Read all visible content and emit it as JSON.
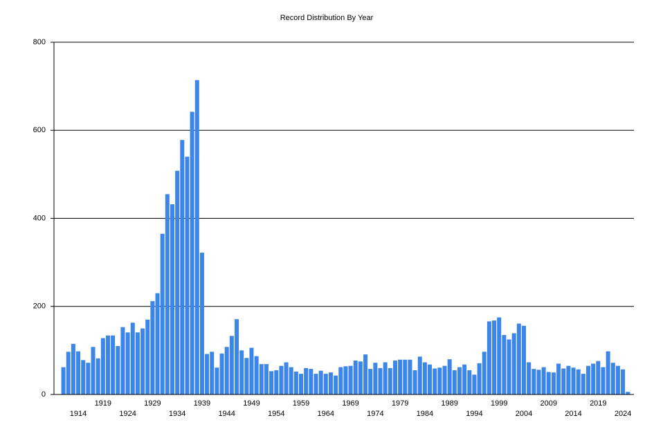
{
  "chart_data": {
    "type": "bar",
    "title": "Record Distribution By Year",
    "categories": [
      null,
      null,
      null,
      "1914",
      null,
      null,
      null,
      null,
      "1919",
      null,
      null,
      null,
      null,
      "1924",
      null,
      null,
      null,
      null,
      "1929",
      null,
      null,
      null,
      null,
      "1934",
      null,
      null,
      null,
      null,
      "1939",
      null,
      null,
      null,
      null,
      "1944",
      null,
      null,
      null,
      null,
      "1949",
      null,
      null,
      null,
      null,
      "1954",
      null,
      null,
      null,
      null,
      "1959",
      null,
      null,
      null,
      null,
      "1964",
      null,
      null,
      null,
      null,
      "1969",
      null,
      null,
      null,
      null,
      "1974",
      null,
      null,
      null,
      null,
      "1979",
      null,
      null,
      null,
      null,
      "1984",
      null,
      null,
      null,
      null,
      "1989",
      null,
      null,
      null,
      null,
      "1994",
      null,
      null,
      null,
      null,
      "1999",
      null,
      null,
      null,
      null,
      "2004",
      null,
      null,
      null,
      null,
      "2009",
      null,
      null,
      null,
      null,
      "2014",
      null,
      null,
      null,
      null,
      "2019",
      null,
      null,
      null,
      null,
      "2024",
      null
    ],
    "values": [
      62,
      97,
      115,
      98,
      78,
      72,
      108,
      82,
      128,
      134,
      134,
      110,
      153,
      141,
      163,
      141,
      150,
      170,
      212,
      230,
      365,
      455,
      432,
      508,
      578,
      540,
      642,
      714,
      322,
      92,
      97,
      61,
      93,
      108,
      133,
      171,
      100,
      83,
      106,
      87,
      69,
      69,
      53,
      55,
      65,
      73,
      62,
      52,
      47,
      60,
      58,
      47,
      54,
      47,
      50,
      43,
      62,
      64,
      65,
      77,
      75,
      91,
      58,
      72,
      60,
      73,
      60,
      77,
      79,
      79,
      79,
      55,
      86,
      73,
      68,
      59,
      61,
      65,
      80,
      55,
      62,
      68,
      55,
      45,
      71,
      97,
      166,
      168,
      175,
      135,
      125,
      139,
      161,
      156,
      73,
      58,
      56,
      62,
      51,
      50,
      70,
      59,
      65,
      61,
      57,
      47,
      65,
      70,
      76,
      62,
      98,
      72,
      65,
      57,
      6
    ],
    "color": "#3b86e8",
    "ylim": [
      0,
      800
    ],
    "yticks": [
      0,
      200,
      400,
      600,
      800
    ],
    "grid": true
  }
}
